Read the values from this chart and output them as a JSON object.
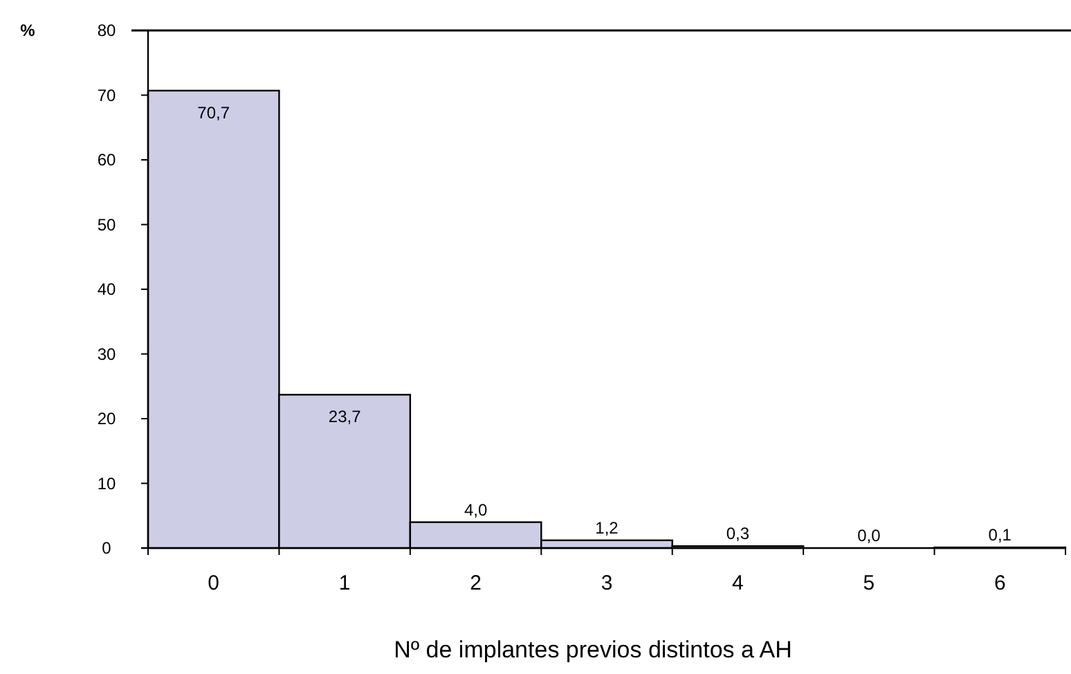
{
  "chart_data": {
    "type": "bar",
    "ylabel": "%",
    "xlabel": "Nº de implantes previos distintos a AH",
    "categories": [
      "0",
      "1",
      "2",
      "3",
      "4",
      "5",
      "6"
    ],
    "values": [
      70.7,
      23.7,
      4.0,
      1.2,
      0.3,
      0.0,
      0.1
    ],
    "value_labels": [
      "70,7",
      "23,7",
      "4,0",
      "1,2",
      "0,3",
      "0,0",
      "0,1"
    ],
    "color": "#cdcde6",
    "ylim": [
      0,
      80
    ],
    "yticks": [
      0,
      10,
      20,
      30,
      40,
      50,
      60,
      70,
      80
    ],
    "grid": false
  }
}
